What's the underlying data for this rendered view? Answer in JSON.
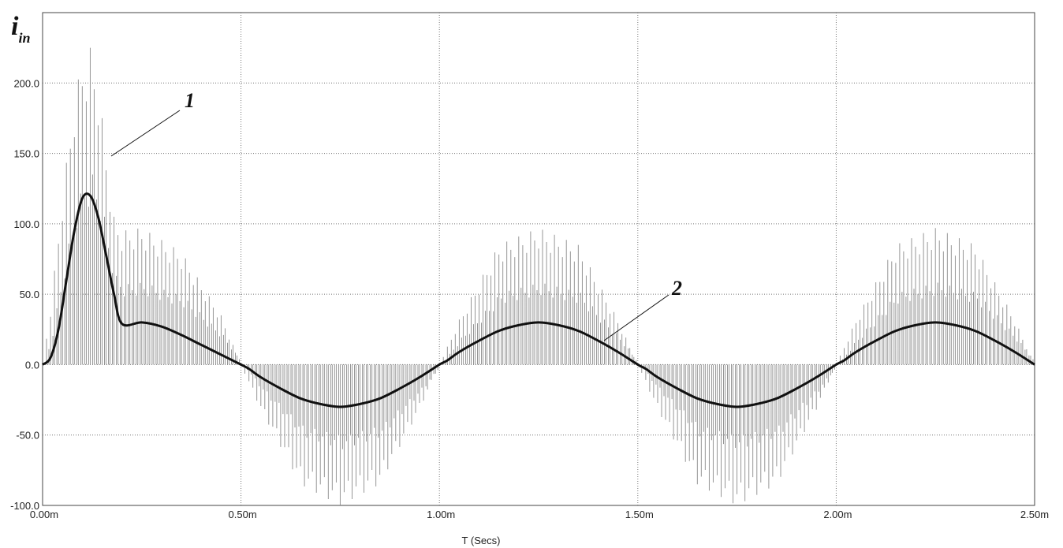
{
  "chart_data": {
    "type": "line",
    "ylabel": {
      "main": "i",
      "sub": "in"
    },
    "xlabel": "T (Secs)",
    "xlim": [
      0,
      2.5
    ],
    "ylim": [
      -100,
      250
    ],
    "grid": true,
    "x_unit": "ms",
    "xticks": [
      {
        "value": 0.0,
        "label": "0.00m"
      },
      {
        "value": 0.5,
        "label": "0.50m"
      },
      {
        "value": 1.0,
        "label": "1.00m"
      },
      {
        "value": 1.5,
        "label": "1.50m"
      },
      {
        "value": 2.0,
        "label": "2.00m"
      },
      {
        "value": 2.5,
        "label": "2.50m"
      }
    ],
    "yticks": [
      {
        "value": 200,
        "label": "200.0"
      },
      {
        "value": 150,
        "label": "150.0"
      },
      {
        "value": 100,
        "label": "100.0"
      },
      {
        "value": 50,
        "label": "50.0"
      },
      {
        "value": 0,
        "label": "0.0"
      },
      {
        "value": -50,
        "label": "-50.0"
      },
      {
        "value": -100,
        "label": "-100.0"
      }
    ],
    "series": [
      {
        "name": "1",
        "style": "pulsed",
        "color": "#8a8a8a",
        "note_pulse_count_per_ms": 100,
        "envelope_x": [
          0.0,
          0.02,
          0.05,
          0.08,
          0.1,
          0.12,
          0.14,
          0.16,
          0.18,
          0.2,
          0.25,
          0.35,
          0.45,
          0.5,
          0.55,
          0.65,
          0.75,
          0.85,
          0.95,
          1.0,
          1.05,
          1.15,
          1.25,
          1.35,
          1.45,
          1.5,
          1.55,
          1.65,
          1.75,
          1.85,
          1.95,
          2.0,
          2.05,
          2.15,
          2.25,
          2.35,
          2.45,
          2.5
        ],
        "envelope_y": [
          0,
          40,
          120,
          190,
          215,
          225,
          200,
          150,
          105,
          95,
          97,
          80,
          35,
          0,
          -32,
          -85,
          -100,
          -85,
          -32,
          0,
          32,
          85,
          97,
          85,
          32,
          0,
          -32,
          -85,
          -100,
          -85,
          -32,
          0,
          32,
          85,
          97,
          85,
          32,
          0
        ]
      },
      {
        "name": "2",
        "style": "solid",
        "color": "#111111",
        "x": [
          0.0,
          0.02,
          0.04,
          0.06,
          0.08,
          0.1,
          0.12,
          0.14,
          0.16,
          0.18,
          0.2,
          0.25,
          0.3,
          0.35,
          0.4,
          0.45,
          0.5,
          0.52,
          0.55,
          0.6,
          0.65,
          0.7,
          0.75,
          0.8,
          0.85,
          0.9,
          0.95,
          1.0,
          1.02,
          1.05,
          1.1,
          1.15,
          1.2,
          1.25,
          1.3,
          1.35,
          1.4,
          1.45,
          1.5,
          1.52,
          1.55,
          1.6,
          1.65,
          1.7,
          1.75,
          1.8,
          1.85,
          1.9,
          1.95,
          2.0,
          2.02,
          2.05,
          2.1,
          2.15,
          2.2,
          2.25,
          2.3,
          2.35,
          2.4,
          2.45,
          2.5
        ],
        "y": [
          0,
          5,
          25,
          60,
          95,
          118,
          120,
          105,
          78,
          50,
          29,
          30,
          27,
          21,
          14,
          7,
          0,
          -3,
          -9,
          -17,
          -24,
          -28,
          -30,
          -28,
          -24,
          -17,
          -9,
          0,
          3,
          9,
          17,
          24,
          28,
          30,
          28,
          24,
          17,
          9,
          0,
          -3,
          -9,
          -17,
          -24,
          -28,
          -30,
          -28,
          -24,
          -17,
          -9,
          0,
          3,
          9,
          17,
          24,
          28,
          30,
          28,
          24,
          17,
          9,
          0
        ]
      }
    ],
    "annotations": [
      {
        "text": "1",
        "series": "1"
      },
      {
        "text": "2",
        "series": "2"
      }
    ]
  }
}
